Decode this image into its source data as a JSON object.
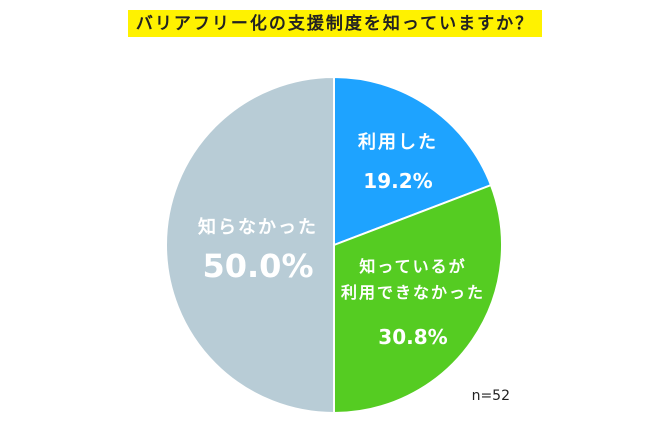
{
  "chart_data": {
    "type": "pie",
    "title": "バリアフリー化の支援制度を知っていますか？",
    "slices": [
      {
        "label_lines": [
          "利用した"
        ],
        "value": 19.2,
        "value_text": "19.2%",
        "color": "#1ea3ff"
      },
      {
        "label_lines": [
          "知っているが",
          "利用できなかった"
        ],
        "value": 30.8,
        "value_text": "30.8%",
        "color": "#55cc22"
      },
      {
        "label_lines": [
          "知らなかった"
        ],
        "value": 50.0,
        "value_text": "50.0%",
        "color": "#b8ccd6"
      }
    ],
    "start": "top, clockwise",
    "note": "n=52"
  }
}
